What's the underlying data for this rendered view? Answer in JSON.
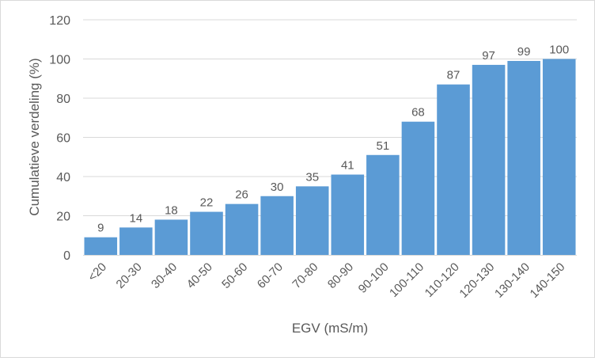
{
  "chart_data": {
    "type": "bar",
    "title": "",
    "xlabel": "EGV (mS/m)",
    "ylabel": "Cumulatieve verdeling (%)",
    "categories": [
      "<20",
      "20-30",
      "30-40",
      "40-50",
      "50-60",
      "60-70",
      "70-80",
      "80-90",
      "90-100",
      "100-110",
      "110-120",
      "120-130",
      "130-140",
      "140-150"
    ],
    "values": [
      9,
      14,
      18,
      22,
      26,
      30,
      35,
      41,
      51,
      68,
      87,
      97,
      99,
      100
    ],
    "ylim": [
      0,
      120
    ],
    "yticks": [
      0,
      20,
      40,
      60,
      80,
      100,
      120
    ],
    "grid": true,
    "legend": "none",
    "colors": {
      "bar": "#5b9bd5",
      "grid": "#d9d9d9",
      "text": "#595959",
      "border": "#d9d9d9"
    }
  }
}
